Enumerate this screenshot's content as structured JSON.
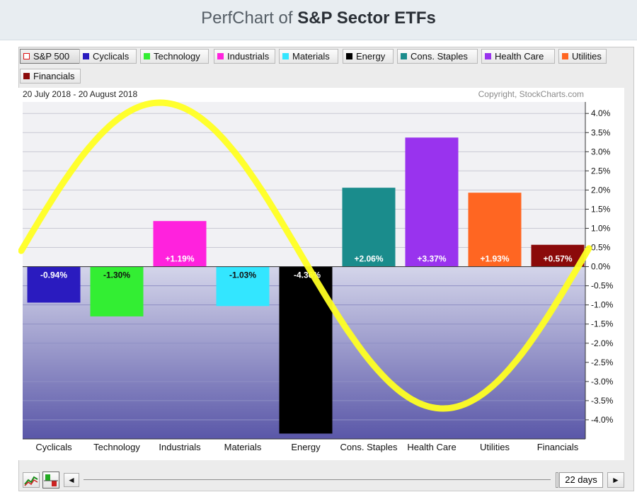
{
  "page": {
    "title_light": "PerfChart of ",
    "title_bold": "S&P Sector ETFs"
  },
  "legend": [
    {
      "label": "S&P 500",
      "color": "#dd1111",
      "hollow": true,
      "active": true
    },
    {
      "label": "Cyclicals",
      "color": "#2a1bbf"
    },
    {
      "label": "Technology",
      "color": "#33ee33"
    },
    {
      "label": "Industrials",
      "color": "#ff22dd"
    },
    {
      "label": "Materials",
      "color": "#33e6ff"
    },
    {
      "label": "Energy",
      "color": "#000000"
    },
    {
      "label": "Cons. Staples",
      "color": "#1a8c8c"
    },
    {
      "label": "Health Care",
      "color": "#9933ee"
    },
    {
      "label": "Utilities",
      "color": "#ff6622"
    },
    {
      "label": "Financials",
      "color": "#8b0a0a"
    }
  ],
  "chart_data": {
    "type": "bar",
    "date_range": "20 July 2018 - 20 August 2018",
    "copyright": "Copyright, StockCharts.com",
    "categories": [
      "Cyclicals",
      "Technology",
      "Industrials",
      "Materials",
      "Energy",
      "Cons. Staples",
      "Health Care",
      "Utilities",
      "Financials"
    ],
    "values": [
      -0.94,
      -1.3,
      1.19,
      -1.03,
      -4.36,
      2.06,
      3.37,
      1.93,
      0.57
    ],
    "value_labels": [
      "-0.94%",
      "-1.30%",
      "+1.19%",
      "-1.03%",
      "-4.36%",
      "+2.06%",
      "+3.37%",
      "+1.93%",
      "+0.57%"
    ],
    "colors": [
      "#2a1bbf",
      "#33ee33",
      "#ff22dd",
      "#33e6ff",
      "#000000",
      "#1a8c8c",
      "#9933ee",
      "#ff6622",
      "#8b0a0a"
    ],
    "ylim": [
      -4.5,
      4.3
    ],
    "yticks": [
      4.0,
      3.5,
      3.0,
      2.5,
      2.0,
      1.5,
      1.0,
      0.5,
      0.0,
      -0.5,
      -1.0,
      -1.5,
      -2.0,
      -2.5,
      -3.0,
      -3.5,
      -4.0
    ],
    "ytick_labels": [
      "4.0%",
      "3.5%",
      "3.0%",
      "2.5%",
      "2.0%",
      "1.5%",
      "1.0%",
      "0.5%",
      "0.0%",
      "-0.5%",
      "-1.0%",
      "-1.5%",
      "-2.0%",
      "-2.5%",
      "-3.0%",
      "-3.5%",
      "-4.0%"
    ],
    "grid": true,
    "annotation": {
      "type": "sine-curve",
      "color": "#ffff22"
    }
  },
  "controls": {
    "days_label": "22 days",
    "prev_label": "◄",
    "next_label": "►"
  }
}
